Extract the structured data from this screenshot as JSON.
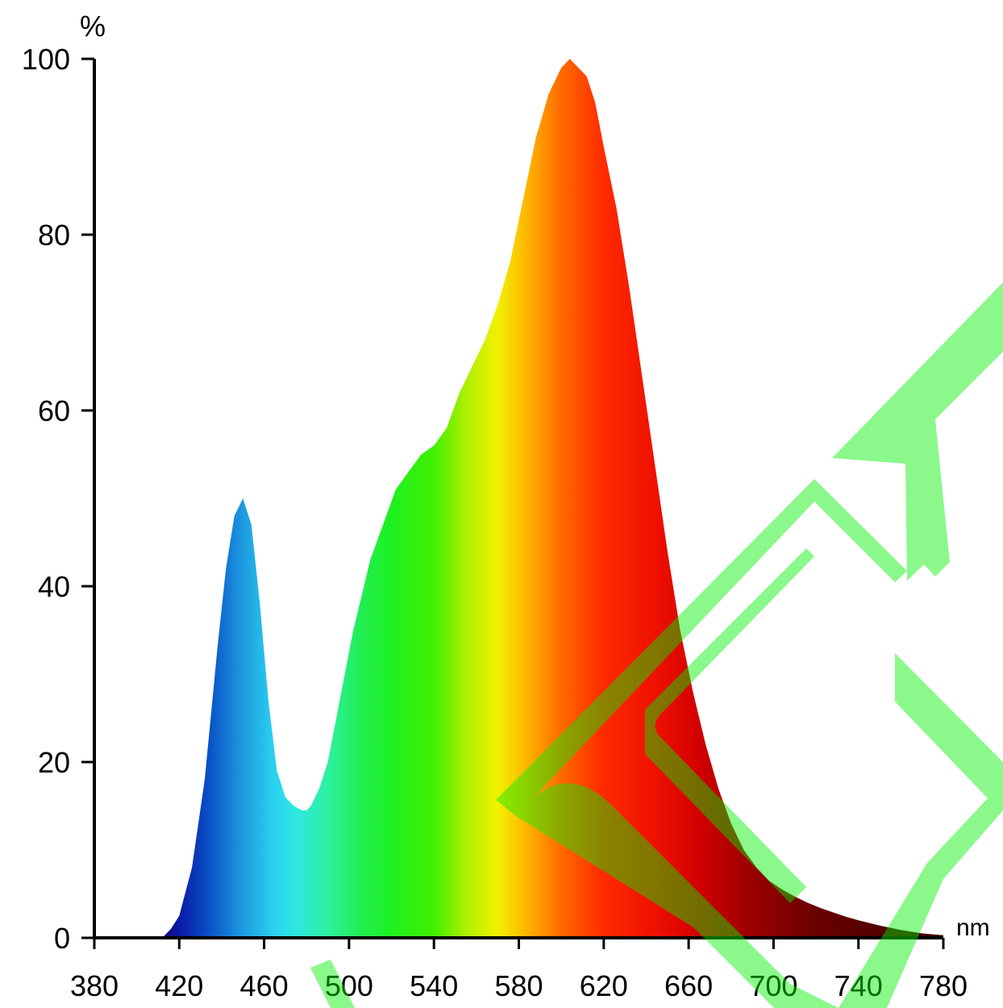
{
  "chart_data": {
    "type": "area",
    "title": "",
    "xlabel": "nm",
    "ylabel": "%",
    "xlim": [
      380,
      780
    ],
    "ylim": [
      0,
      100
    ],
    "x_ticks": [
      380,
      420,
      460,
      500,
      540,
      580,
      620,
      660,
      700,
      740,
      780
    ],
    "y_ticks": [
      0,
      20,
      40,
      60,
      80,
      100
    ],
    "grid": false,
    "legend": "none",
    "series": [
      {
        "x": [
          380,
          412,
          416,
          420,
          426,
          432,
          438,
          442,
          446,
          450,
          454,
          458,
          462,
          466,
          470,
          474,
          478,
          480,
          482,
          486,
          490,
          494,
          498,
          502,
          506,
          510,
          516,
          522,
          528,
          534,
          540,
          546,
          552,
          558,
          564,
          570,
          576,
          582,
          588,
          594,
          600,
          604,
          608,
          612,
          616,
          620,
          626,
          632,
          638,
          644,
          650,
          656,
          662,
          668,
          674,
          680,
          686,
          692,
          698,
          704,
          710,
          716,
          722,
          728,
          734,
          740,
          750,
          760,
          770,
          780
        ],
        "values": [
          0,
          0,
          1,
          2.5,
          8,
          18,
          33,
          42,
          48,
          50,
          47,
          38,
          27,
          19,
          16,
          15,
          14.5,
          14.5,
          15,
          17,
          20,
          25,
          30,
          35,
          39,
          43,
          47,
          51,
          53,
          55,
          56,
          58,
          62,
          65,
          68,
          72,
          77,
          84,
          91,
          96,
          99,
          100,
          99,
          98,
          95,
          90,
          83,
          74,
          64,
          54,
          44,
          35,
          28,
          22,
          17,
          13,
          10,
          8,
          6.5,
          5.5,
          4.7,
          4.0,
          3.4,
          2.9,
          2.4,
          2.0,
          1.4,
          0.9,
          0.5,
          0.3
        ]
      }
    ],
    "spectrum_colors": [
      {
        "nm": 410,
        "color": "#1a0066"
      },
      {
        "nm": 420,
        "color": "#0a1aa8"
      },
      {
        "nm": 435,
        "color": "#0a55c8"
      },
      {
        "nm": 450,
        "color": "#1e9be0"
      },
      {
        "nm": 465,
        "color": "#2ad2f0"
      },
      {
        "nm": 475,
        "color": "#2ee8e0"
      },
      {
        "nm": 490,
        "color": "#2ef0a0"
      },
      {
        "nm": 505,
        "color": "#22ee55"
      },
      {
        "nm": 520,
        "color": "#1ef020"
      },
      {
        "nm": 540,
        "color": "#40f000"
      },
      {
        "nm": 555,
        "color": "#aef000"
      },
      {
        "nm": 570,
        "color": "#f2f000"
      },
      {
        "nm": 585,
        "color": "#ffb000"
      },
      {
        "nm": 600,
        "color": "#ff6a00"
      },
      {
        "nm": 620,
        "color": "#ff2a00"
      },
      {
        "nm": 645,
        "color": "#ee1000"
      },
      {
        "nm": 665,
        "color": "#d10000"
      },
      {
        "nm": 690,
        "color": "#9a0000"
      },
      {
        "nm": 720,
        "color": "#6a0000"
      },
      {
        "nm": 780,
        "color": "#3a0000"
      }
    ]
  }
}
